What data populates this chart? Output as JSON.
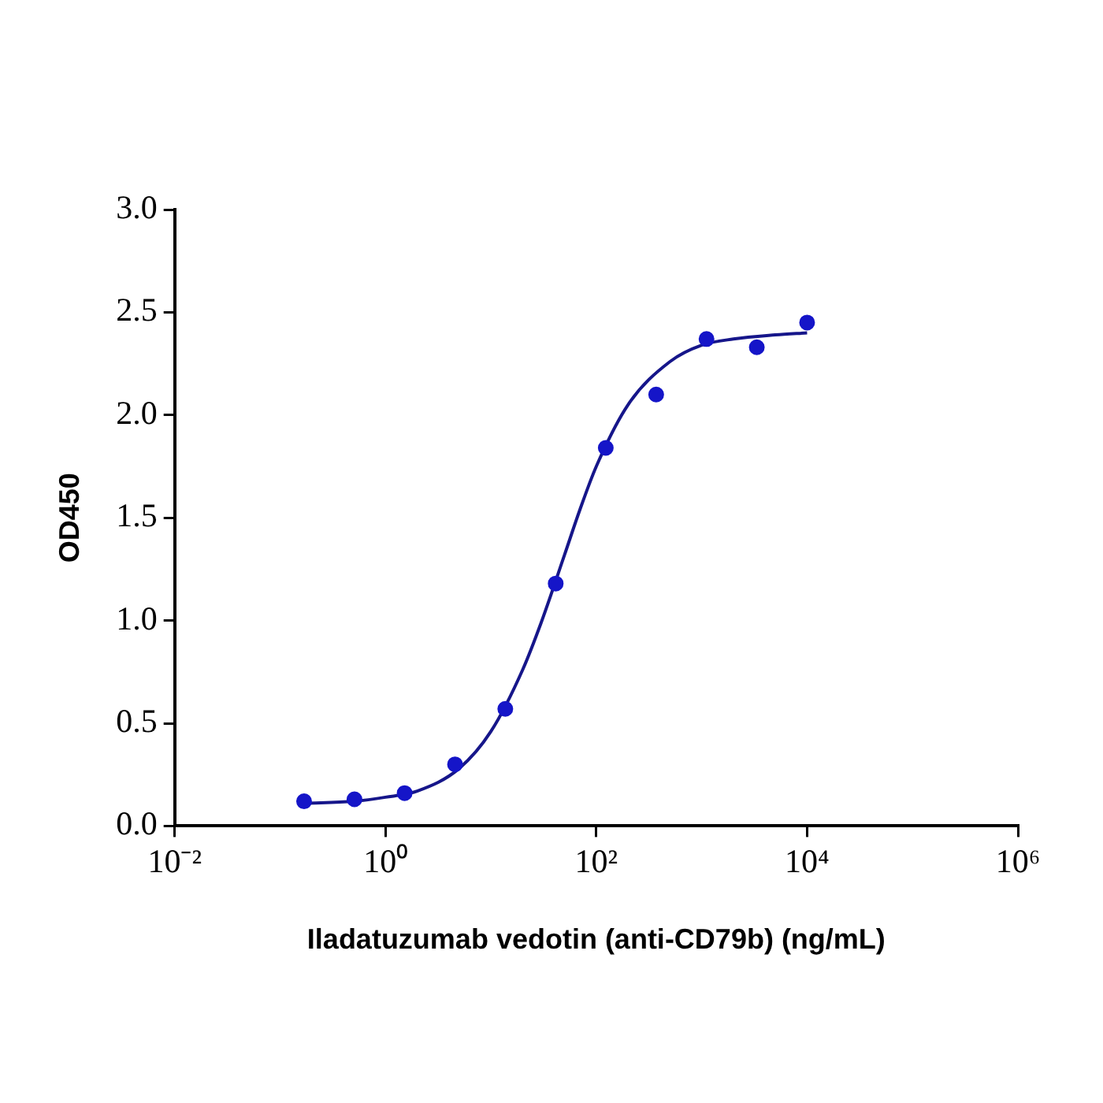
{
  "chart_data": {
    "type": "scatter",
    "xlabel": "Iladatuzumab vedotin (anti-CD79b) (ng/mL)",
    "ylabel": "OD450",
    "log": "x",
    "grid": false,
    "marker": "circle",
    "xlim": [
      0.01,
      1000000
    ],
    "xticks": [
      {
        "value": 0.01,
        "label": "10⁻²"
      },
      {
        "value": 1,
        "label": "10⁰"
      },
      {
        "value": 100,
        "label": "10²"
      },
      {
        "value": 10000,
        "label": "10⁴"
      },
      {
        "value": 1000000,
        "label": "10⁶"
      }
    ],
    "ylim": [
      0,
      3
    ],
    "yticks": [
      {
        "value": 0,
        "label": "0.0"
      },
      {
        "value": 0.5,
        "label": "0.5"
      },
      {
        "value": 1,
        "label": "1.0"
      },
      {
        "value": 1.5,
        "label": "1.5"
      },
      {
        "value": 2,
        "label": "2.0"
      },
      {
        "value": 2.5,
        "label": "2.5"
      },
      {
        "value": 3,
        "label": "3.0"
      }
    ],
    "series": [
      {
        "color": "#1515c8",
        "x": [
          0.169,
          0.508,
          1.52,
          4.57,
          13.7,
          41.2,
          123,
          370,
          1111,
          3333,
          10000
        ],
        "values": [
          0.12,
          0.13,
          0.16,
          0.3,
          0.57,
          1.18,
          1.84,
          2.1,
          2.37,
          2.33,
          2.45
        ]
      },
      {
        "type": "line",
        "marker": "none",
        "color": "#16168a",
        "x": [
          0.17,
          0.5,
          1,
          2,
          5,
          10,
          20,
          30,
          50,
          70,
          100,
          200,
          500,
          1000,
          2000,
          5000,
          10000
        ],
        "values": [
          0.11,
          0.12,
          0.14,
          0.17,
          0.28,
          0.46,
          0.76,
          0.99,
          1.32,
          1.54,
          1.75,
          2.05,
          2.26,
          2.34,
          2.37,
          2.39,
          2.4
        ]
      }
    ]
  }
}
